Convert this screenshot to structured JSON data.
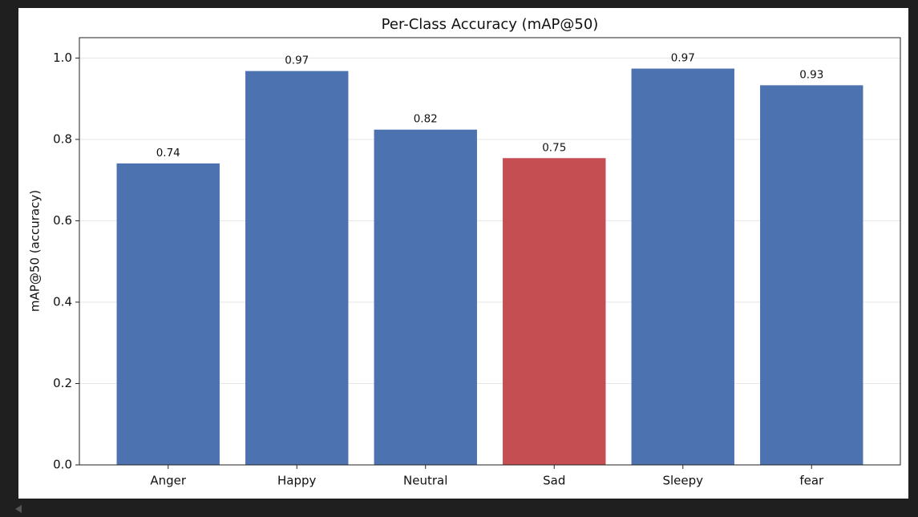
{
  "chart_data": {
    "type": "bar",
    "title": "Per-Class Accuracy (mAP@50)",
    "y_label": "mAP@50 (accuracy)",
    "categories": [
      "Anger",
      "Happy",
      "Neutral",
      "Sad",
      "Sleepy",
      "fear"
    ],
    "values": [
      0.741,
      0.968,
      0.824,
      0.754,
      0.974,
      0.933
    ],
    "value_labels": [
      "0.74",
      "0.97",
      "0.82",
      "0.75",
      "0.97",
      "0.93"
    ],
    "colors": [
      "#4c72b0",
      "#4c72b0",
      "#4c72b0",
      "#c44e52",
      "#4c72b0",
      "#4c72b0"
    ],
    "ylim": [
      0,
      1.05
    ],
    "yticks": [
      {
        "value": 0,
        "label": "0.0"
      },
      0.2,
      0.4,
      0.6,
      0.8,
      {
        "value": 1,
        "label": "1.0"
      }
    ],
    "grid": true
  }
}
